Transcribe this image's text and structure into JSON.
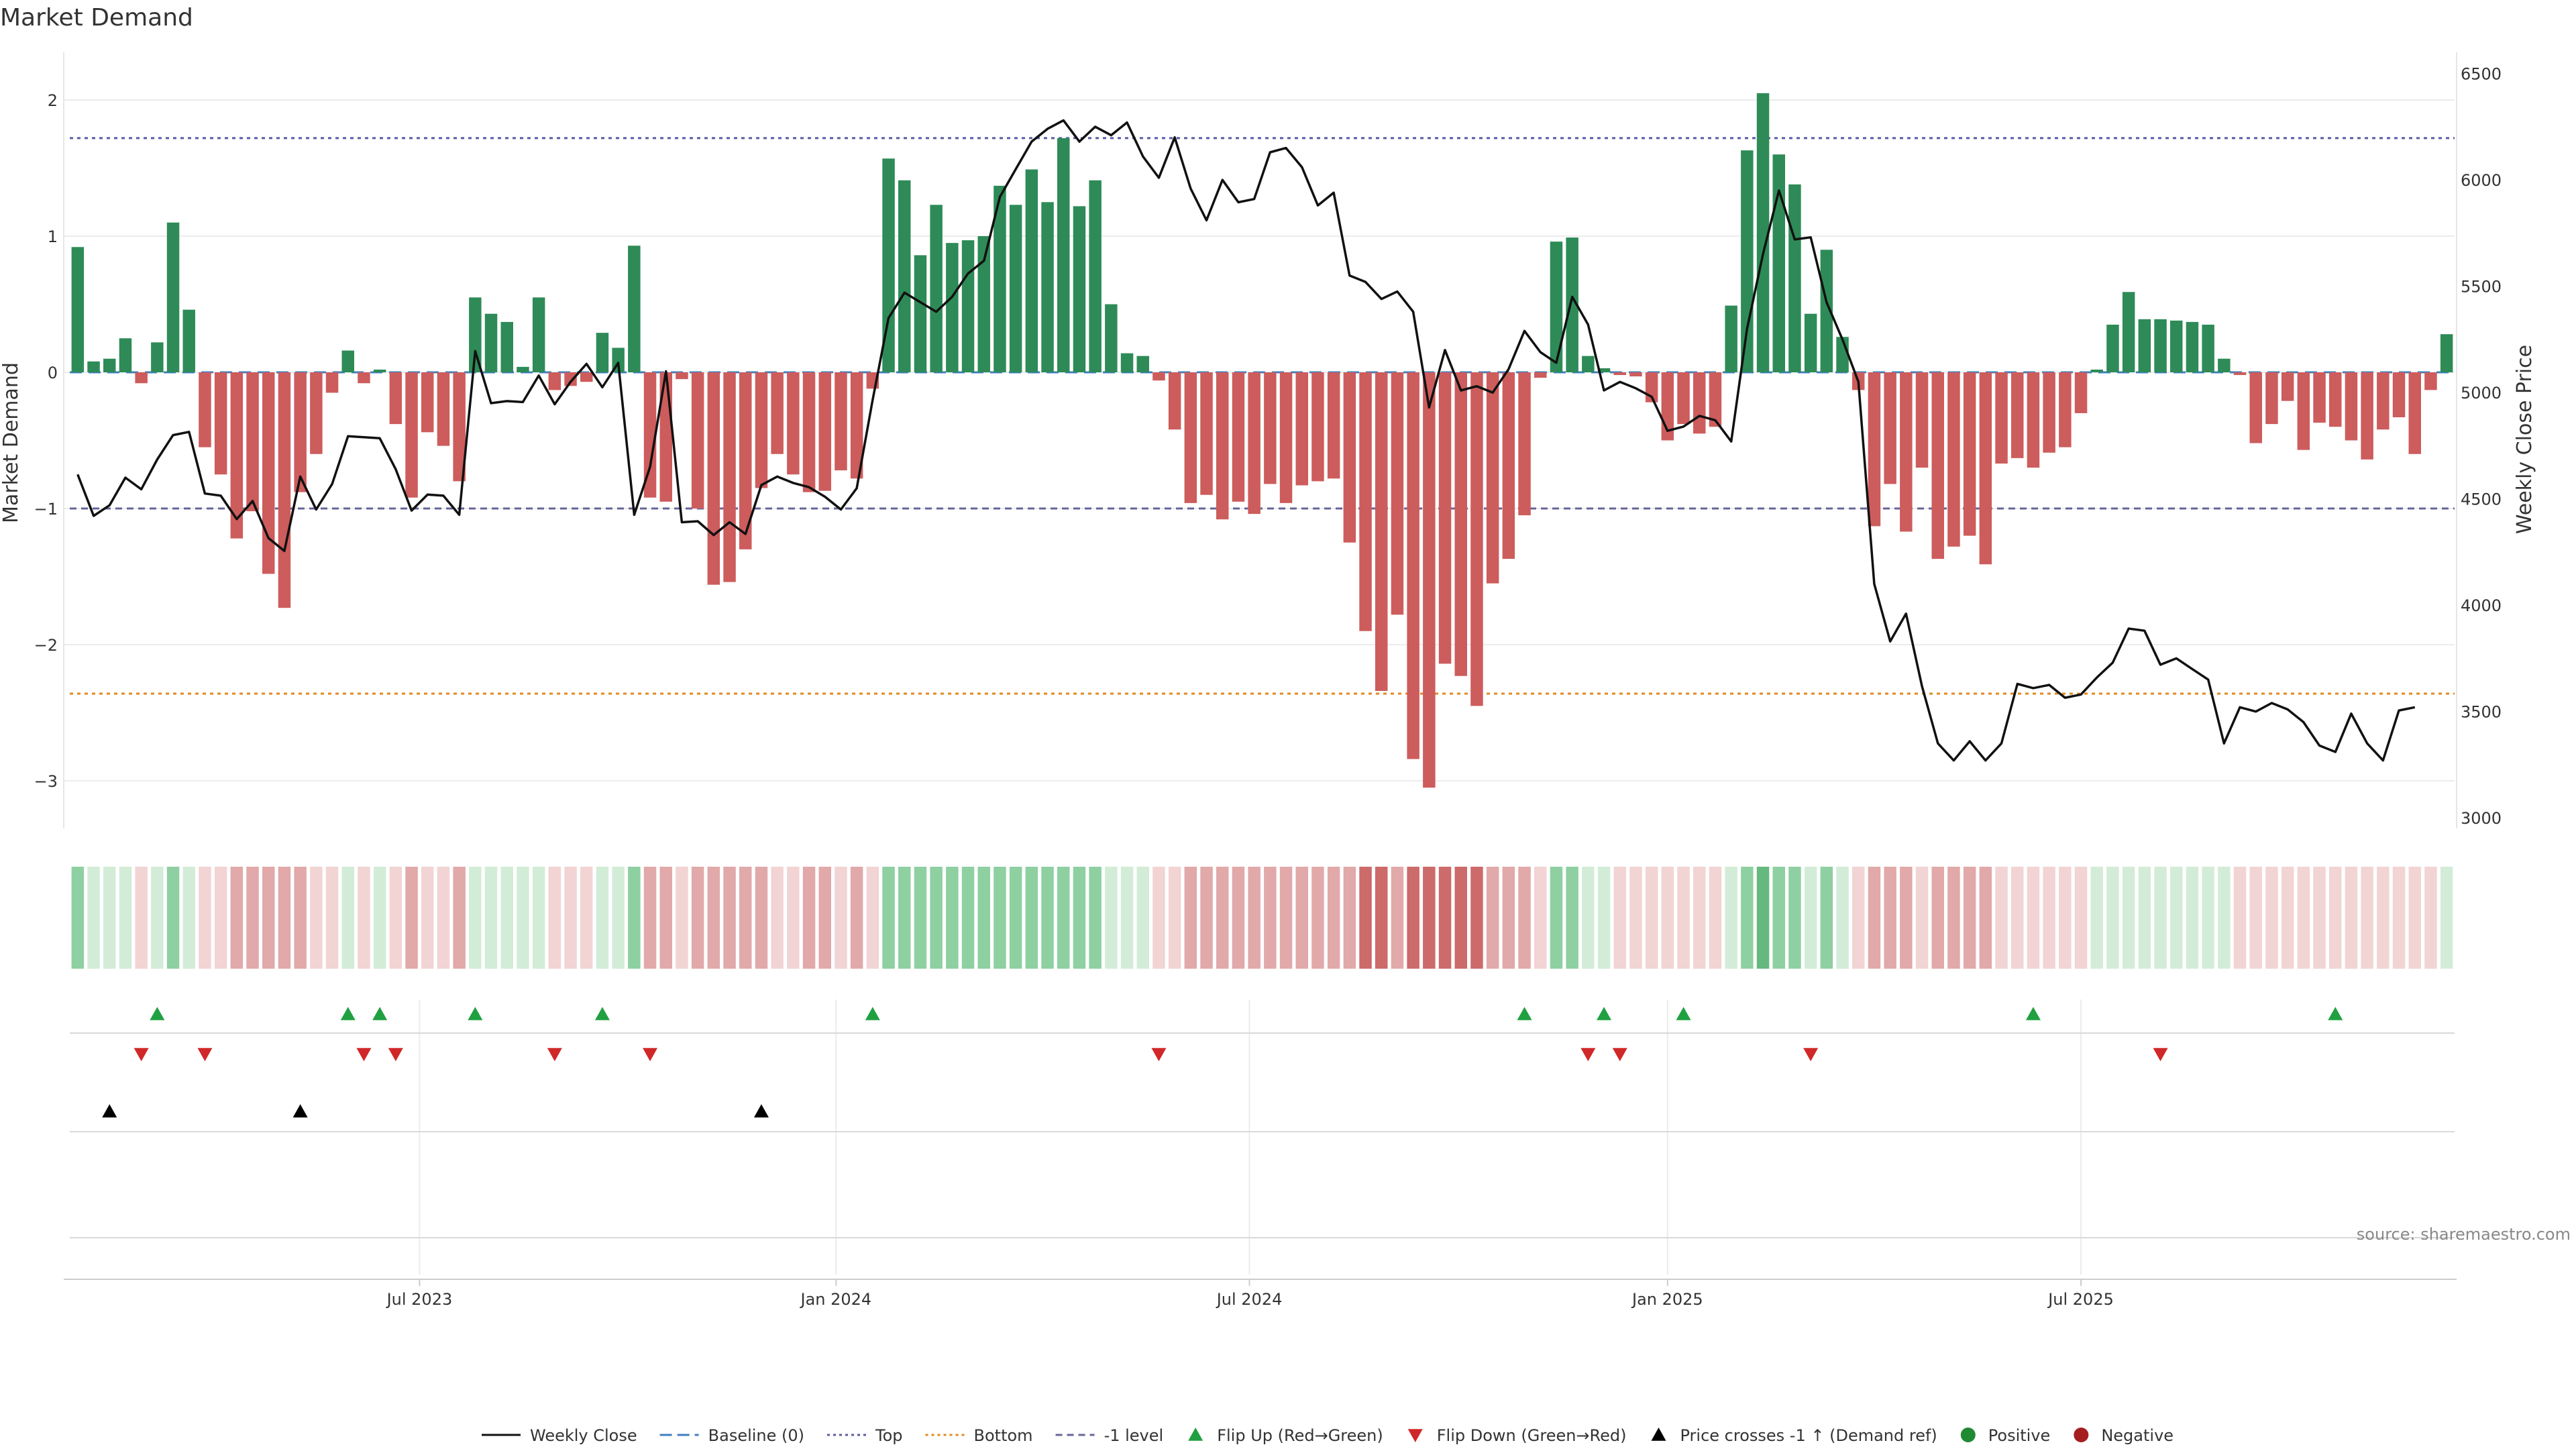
{
  "chart_data": {
    "type": "bar",
    "title": "Market Demand",
    "ylabel_left": "Market Demand",
    "ylabel_right": "Weekly Close Price",
    "source": "source: sharemaestro.com",
    "left_ylim": [
      -3.35,
      2.35
    ],
    "right_ylim": [
      2950,
      6600
    ],
    "left_yticks": [
      2,
      1,
      0,
      -1,
      -2,
      -3
    ],
    "left_ytick_labels": [
      "2",
      "1",
      "0",
      "−1",
      "−2",
      "−3"
    ],
    "right_yticks": [
      6500,
      6000,
      5500,
      5000,
      4500,
      4000,
      3500,
      3000
    ],
    "right_ytick_labels": [
      "6500",
      "6000",
      "5500",
      "5000",
      "4500",
      "4000",
      "3500",
      "3000"
    ],
    "reference_lines": {
      "baseline": 0,
      "top": 1.72,
      "bottom": -2.36,
      "minus_one": -1
    },
    "x_tick_labels": [
      {
        "index": 21.5,
        "label": "Jul 2023"
      },
      {
        "index": 47.7,
        "label": "Jan 2024"
      },
      {
        "index": 73.7,
        "label": "Jul 2024"
      },
      {
        "index": 100.0,
        "label": "Jan 2025"
      },
      {
        "index": 126.0,
        "label": "Jul 2025"
      }
    ],
    "demand": [
      0.92,
      0.08,
      0.1,
      0.25,
      -0.08,
      0.22,
      1.1,
      0.46,
      -0.55,
      -0.75,
      -1.22,
      -1.02,
      -1.48,
      -1.73,
      -0.88,
      -0.6,
      -0.15,
      0.16,
      -0.08,
      0.02,
      -0.38,
      -0.92,
      -0.44,
      -0.54,
      -0.8,
      0.55,
      0.43,
      0.37,
      0.04,
      0.55,
      -0.13,
      -0.1,
      -0.07,
      0.29,
      0.18,
      0.93,
      -0.92,
      -0.95,
      -0.05,
      -1.0,
      -1.56,
      -1.54,
      -1.3,
      -0.85,
      -0.6,
      -0.75,
      -0.88,
      -0.87,
      -0.72,
      -0.78,
      -0.12,
      1.57,
      1.41,
      0.86,
      1.23,
      0.95,
      0.97,
      1.0,
      1.37,
      1.23,
      1.49,
      1.25,
      1.72,
      1.22,
      1.41,
      0.5,
      0.14,
      0.12,
      -0.06,
      -0.42,
      -0.96,
      -0.9,
      -1.08,
      -0.95,
      -1.04,
      -0.82,
      -0.96,
      -0.83,
      -0.8,
      -0.78,
      -1.25,
      -1.9,
      -2.34,
      -1.78,
      -2.84,
      -3.05,
      -2.14,
      -2.23,
      -2.45,
      -1.55,
      -1.37,
      -1.05,
      -0.04,
      0.96,
      0.99,
      0.12,
      0.03,
      -0.02,
      -0.03,
      -0.22,
      -0.5,
      -0.38,
      -0.45,
      -0.4,
      0.49,
      1.63,
      2.05,
      1.6,
      1.38,
      0.43,
      0.9,
      0.26,
      -0.13,
      -1.13,
      -0.82,
      -1.17,
      -0.7,
      -1.37,
      -1.28,
      -1.2,
      -1.41,
      -0.67,
      -0.63,
      -0.7,
      -0.59,
      -0.55,
      -0.3,
      0.02,
      0.35,
      0.59,
      0.39,
      0.39,
      0.38,
      0.37,
      0.35,
      0.1,
      -0.02,
      -0.52,
      -0.38,
      -0.21,
      -0.57,
      -0.37,
      -0.4,
      -0.5,
      -0.64,
      -0.42,
      -0.33,
      -0.6,
      -0.13,
      0.28
    ],
    "weekly_close": [
      4615,
      4420,
      4470,
      4600,
      4545,
      4685,
      4800,
      4815,
      4525,
      4515,
      4405,
      4490,
      4315,
      4255,
      4605,
      4450,
      4570,
      4795,
      4790,
      4785,
      4640,
      4445,
      4520,
      4515,
      4425,
      5195,
      4950,
      4960,
      4955,
      5080,
      4945,
      5050,
      5135,
      5025,
      5140,
      4425,
      4650,
      5100,
      4390,
      4395,
      4330,
      4390,
      4335,
      4565,
      4605,
      4575,
      4555,
      4510,
      4450,
      4550,
      4965,
      5350,
      5470,
      5425,
      5380,
      5450,
      5560,
      5620,
      5920,
      6050,
      6180,
      6240,
      6280,
      6180,
      6250,
      6210,
      6270,
      6110,
      6010,
      6200,
      5960,
      5810,
      6000,
      5895,
      5910,
      6130,
      6150,
      6060,
      5880,
      5940,
      5550,
      5520,
      5440,
      5475,
      5380,
      4930,
      5200,
      5010,
      5030,
      5000,
      5110,
      5290,
      5190,
      5140,
      5450,
      5320,
      5010,
      5050,
      5020,
      4980,
      4820,
      4840,
      4890,
      4870,
      4770,
      5300,
      5650,
      5950,
      5720,
      5730,
      5425,
      5250,
      5050,
      4100,
      3830,
      3960,
      3620,
      3350,
      3270,
      3360,
      3270,
      3350,
      3630,
      3610,
      3625,
      3565,
      3580,
      3660,
      3730,
      3890,
      3880,
      3720,
      3750,
      3700,
      3650,
      3350,
      3520,
      3500,
      3540,
      3510,
      3450,
      3340,
      3310,
      3490,
      3350,
      3270,
      3505,
      3520
    ]
  },
  "heat_strip": {
    "colors": {
      "green_light": "#d3ecd8",
      "green_mid": "#8ed0a1",
      "green_dark": "#66b97e",
      "red_light": "#f2d4d4",
      "red_mid": "#e1a9a9",
      "red_dark": "#cd6a6a"
    }
  },
  "event_markers": {
    "flip_up": [
      5,
      17,
      19,
      25,
      33,
      50,
      91,
      96,
      101,
      123,
      142
    ],
    "flip_down": [
      4,
      8,
      18,
      20,
      30,
      36,
      68,
      95,
      97,
      109,
      131
    ],
    "price_crosses": [
      2,
      14,
      43
    ]
  },
  "legend": [
    {
      "key": "weekly_close",
      "label": "Weekly Close",
      "color": "#111111",
      "style": "line"
    },
    {
      "key": "baseline",
      "label": "Baseline (0)",
      "color": "#3f7fbf",
      "style": "dashed"
    },
    {
      "key": "top",
      "label": "Top",
      "color": "#5b5ba6",
      "style": "dotted"
    },
    {
      "key": "bottom",
      "label": "Bottom",
      "color": "#e08a1e",
      "style": "dotted"
    },
    {
      "key": "minus_one",
      "label": "-1 level",
      "color": "#666699",
      "style": "dashed"
    },
    {
      "key": "flip_up",
      "label": "Flip Up (Red→Green)",
      "color": "#20a040",
      "style": "triangle-up"
    },
    {
      "key": "flip_down",
      "label": "Flip Down (Green→Red)",
      "color": "#d02828",
      "style": "triangle-down"
    },
    {
      "key": "price_crosses",
      "label": "Price crosses -1 ↑ (Demand ref)",
      "color": "#000000",
      "style": "triangle-up"
    },
    {
      "key": "positive",
      "label": "Positive",
      "color": "#1e8a32",
      "style": "dot"
    },
    {
      "key": "negative",
      "label": "Negative",
      "color": "#a51e1e",
      "style": "dot"
    }
  ],
  "colors": {
    "positive_bar": "#2e8b57",
    "negative_bar": "#cd5c5c",
    "price_line": "#111111",
    "grid": "#ececec"
  }
}
